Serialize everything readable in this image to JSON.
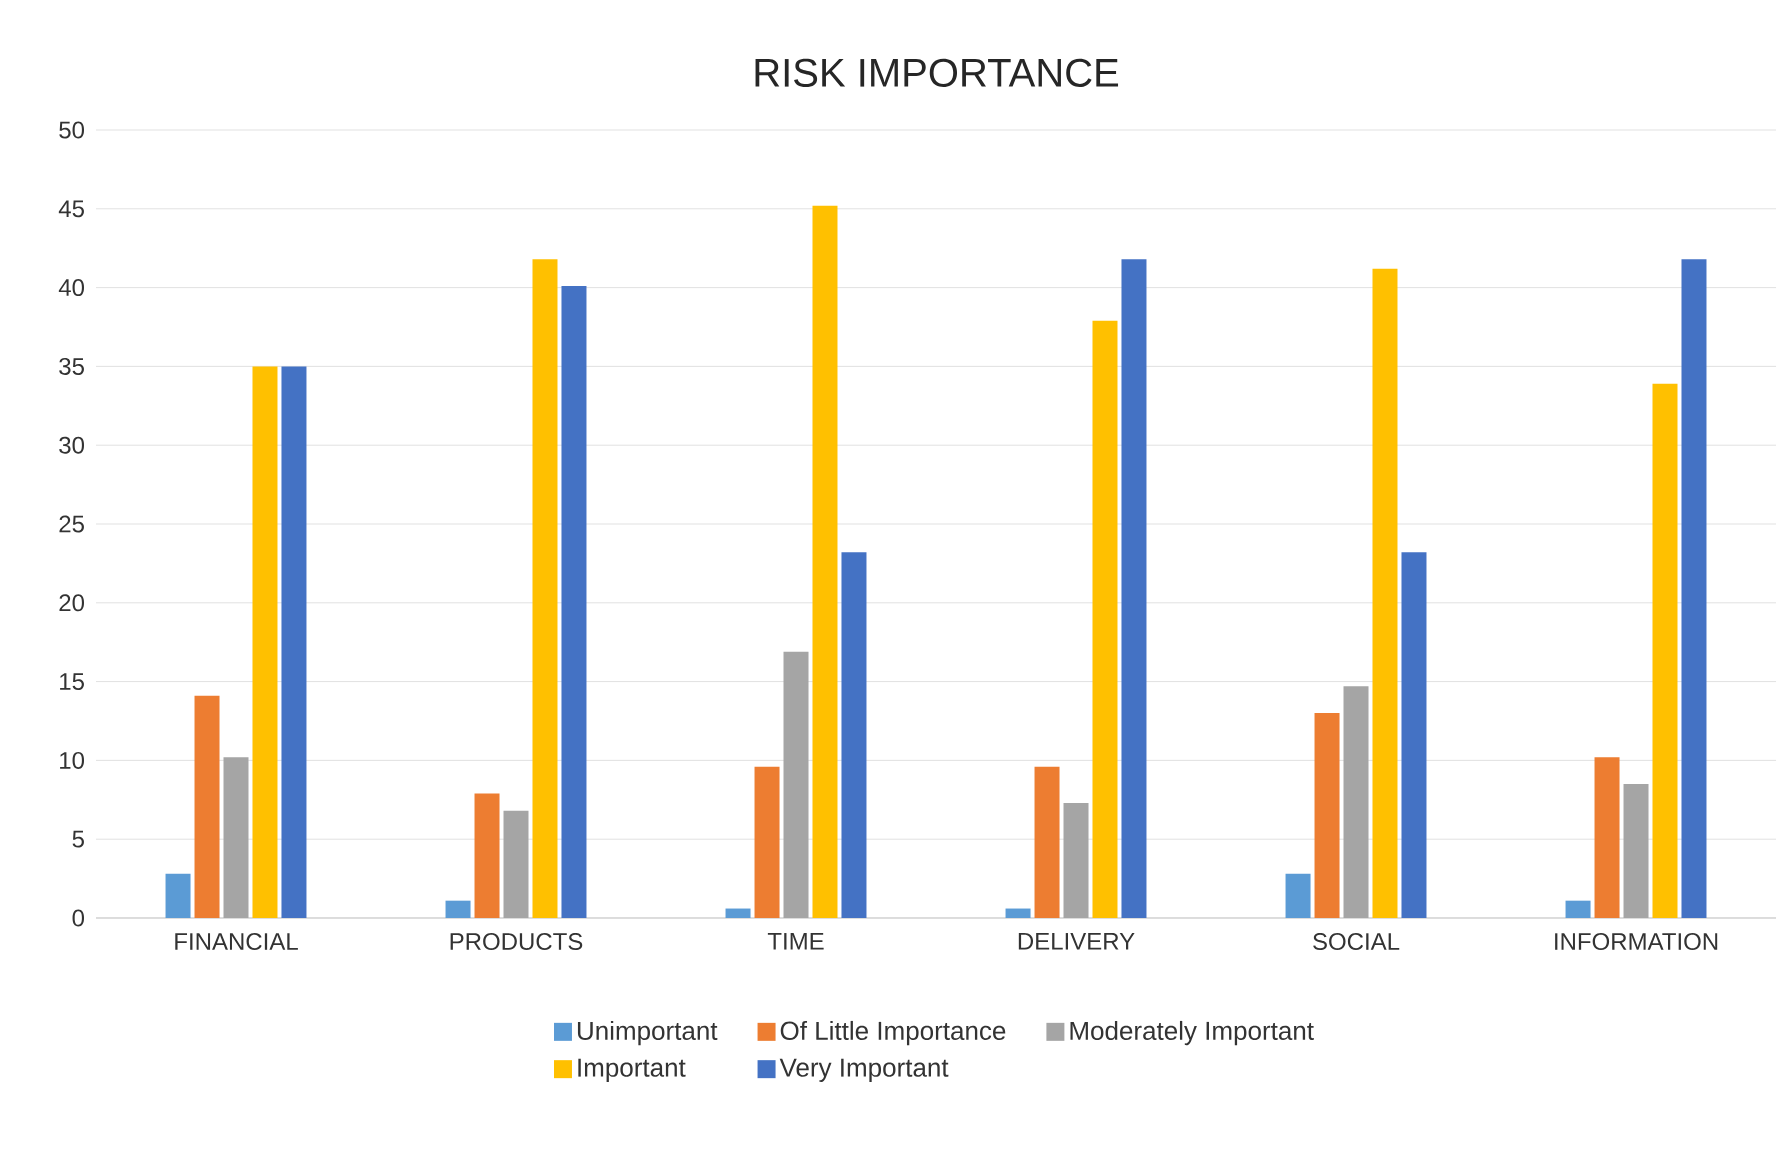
{
  "chart_data": {
    "type": "bar",
    "title": "RISK IMPORTANCE",
    "categories": [
      "FINANCIAL",
      "PRODUCTS",
      "TIME",
      "DELIVERY",
      "SOCIAL",
      "INFORMATION"
    ],
    "series": [
      {
        "name": "Unimportant",
        "color": "#5b9bd5",
        "values": [
          2.8,
          1.1,
          0.6,
          0.6,
          2.8,
          1.1
        ]
      },
      {
        "name": "Of Little Importance",
        "color": "#ed7d31",
        "values": [
          14.1,
          7.9,
          9.6,
          9.6,
          13,
          10.2
        ]
      },
      {
        "name": "Moderately Important",
        "color": "#a5a5a5",
        "values": [
          10.2,
          6.8,
          16.9,
          7.3,
          14.7,
          8.5
        ]
      },
      {
        "name": "Important",
        "color": "#ffc000",
        "values": [
          35,
          41.8,
          45.2,
          37.9,
          41.2,
          33.9
        ]
      },
      {
        "name": "Very Important",
        "color": "#4472c4",
        "values": [
          35,
          40.1,
          23.2,
          41.8,
          23.2,
          41.8
        ]
      }
    ],
    "ylim": [
      0,
      50
    ],
    "yticks": [
      0,
      5,
      10,
      15,
      20,
      25,
      30,
      35,
      40,
      45,
      50
    ],
    "grid": "y",
    "legend": "bottom"
  }
}
